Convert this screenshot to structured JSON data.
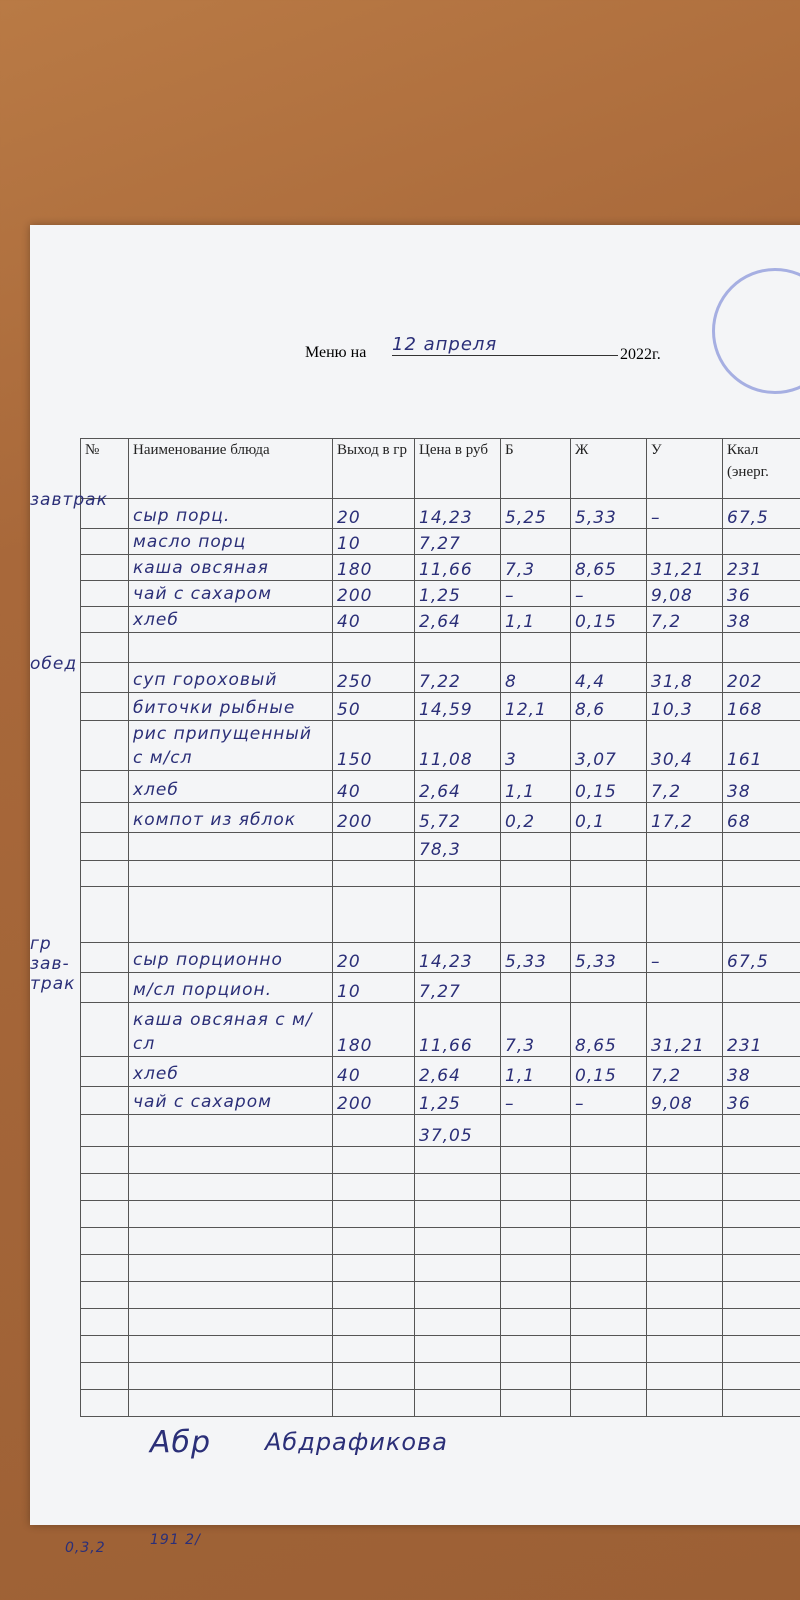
{
  "header": {
    "title_prefix": "Меню на",
    "date": "12 апреля",
    "year": "2022г."
  },
  "table": {
    "columns": [
      "№",
      "Наименование блюда",
      "Выход в гр",
      "Цена в руб",
      "Б",
      "Ж",
      "У",
      "Ккал (энерг."
    ],
    "rows": [
      {
        "meal": "завтрак",
        "cells": [
          "сыр порц.",
          "20",
          "14,23",
          "5,25",
          "5,33",
          "–",
          "67,5"
        ]
      },
      {
        "cells": [
          "масло порц",
          "10",
          "7,27",
          null,
          null,
          null,
          null
        ]
      },
      {
        "cells": [
          "каша овсяная",
          "180",
          "11,66",
          "7,3",
          "8,65",
          "31,21",
          "231"
        ]
      },
      {
        "cells": [
          "чай с сахаром",
          "200",
          "1,25",
          "–",
          "–",
          "9,08",
          "36"
        ]
      },
      {
        "cells": [
          "хлеб",
          "40",
          "2,64",
          "1,1",
          "0,15",
          "7,2",
          "38"
        ]
      },
      {
        "cells": [
          null,
          null,
          null,
          null,
          null,
          null,
          null
        ]
      },
      {
        "meal": "обед",
        "cells": [
          "суп гороховый",
          "250",
          "7,22",
          "8",
          "4,4",
          "31,8",
          "202"
        ]
      },
      {
        "cells": [
          "биточки рыбные",
          "50",
          "14,59",
          "12,1",
          "8,6",
          "10,3",
          "168"
        ]
      },
      {
        "cells": [
          "рис припущенный с м/сл",
          "150",
          "11,08",
          "3",
          "3,07",
          "30,4",
          "161"
        ]
      },
      {
        "cells": [
          "хлеб",
          "40",
          "2,64",
          "1,1",
          "0,15",
          "7,2",
          "38"
        ]
      },
      {
        "cells": [
          "компот из яблок",
          "200",
          "5,72",
          "0,2",
          "0,1",
          "17,2",
          "68"
        ]
      },
      {
        "cells": [
          null,
          null,
          "78,3",
          null,
          null,
          null,
          null
        ]
      },
      {
        "cells": [
          null,
          null,
          null,
          null,
          null,
          null,
          null
        ]
      },
      {
        "cells": [
          null,
          null,
          null,
          null,
          null,
          null,
          null
        ]
      },
      {
        "meal": "гр зав-трак",
        "cells": [
          "сыр порционно",
          "20",
          "14,23",
          "5,33",
          "5,33",
          "–",
          "67,5"
        ]
      },
      {
        "cells": [
          "м/сл порцион.",
          "10",
          "7,27",
          null,
          null,
          null,
          null
        ]
      },
      {
        "cells": [
          "каша овсяная с м/сл",
          "180",
          "11,66",
          "7,3",
          "8,65",
          "31,21",
          "231"
        ]
      },
      {
        "cells": [
          "хлеб",
          "40",
          "2,64",
          "1,1",
          "0,15",
          "7,2",
          "38"
        ]
      },
      {
        "cells": [
          "чай с сахаром",
          "200",
          "1,25",
          "–",
          "–",
          "9,08",
          "36"
        ]
      },
      {
        "cells": [
          null,
          null,
          "37,05",
          null,
          null,
          null,
          null
        ]
      }
    ]
  },
  "signature": {
    "initials": "Абр",
    "name": "Абдрафикова"
  },
  "notes": [
    "0,3,2",
    "191 2/"
  ]
}
